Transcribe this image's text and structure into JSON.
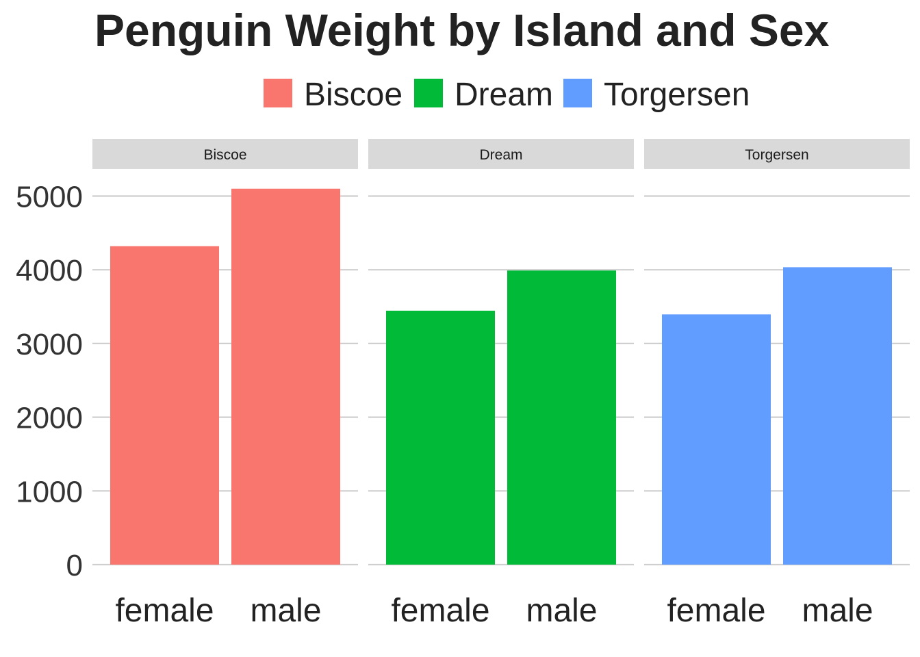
{
  "chart_data": {
    "type": "bar",
    "title": "Penguin Weight by Island and Sex",
    "legend": {
      "placement": "top",
      "entries": [
        {
          "label": "Biscoe",
          "color": "#F8766D"
        },
        {
          "label": "Dream",
          "color": "#00BA38"
        },
        {
          "label": "Torgersen",
          "color": "#619CFF"
        }
      ]
    },
    "facets": [
      "Biscoe",
      "Dream",
      "Torgersen"
    ],
    "categories": [
      "female",
      "male"
    ],
    "series": [
      {
        "name": "Biscoe",
        "values": [
          4320,
          5100
        ]
      },
      {
        "name": "Dream",
        "values": [
          3445,
          3990
        ]
      },
      {
        "name": "Torgersen",
        "values": [
          3395,
          4035
        ]
      }
    ],
    "y_ticks": [
      0,
      1000,
      2000,
      3000,
      4000,
      5000
    ],
    "ylim": [
      0,
      5100
    ],
    "grid": true
  }
}
